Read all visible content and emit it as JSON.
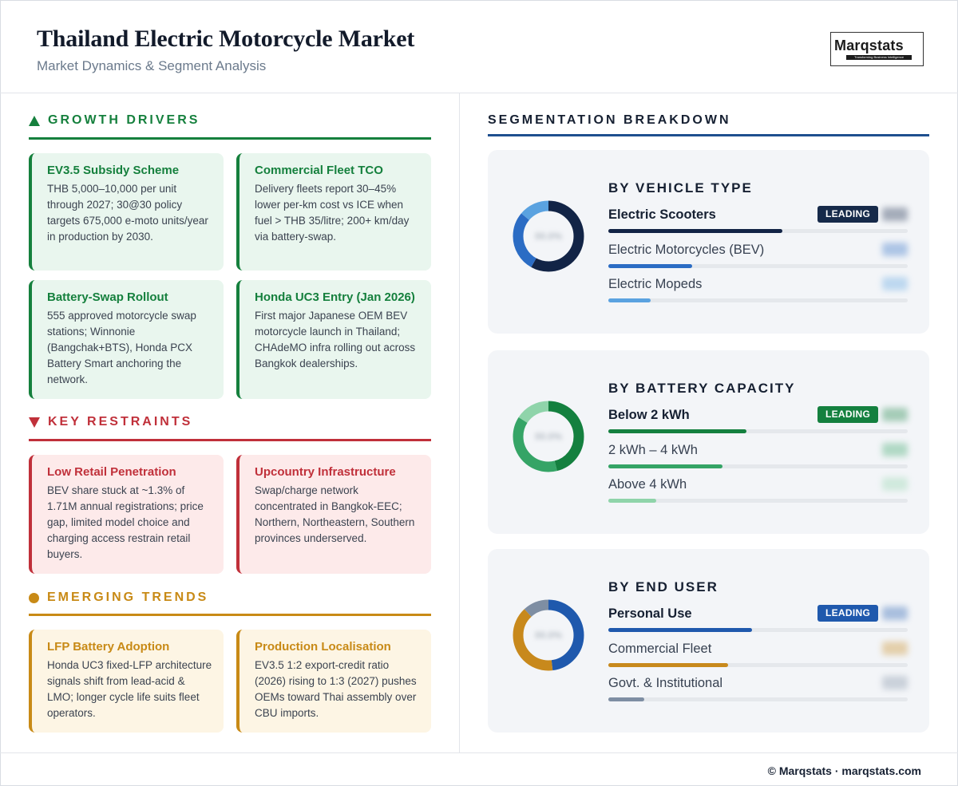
{
  "header": {
    "title": "Thailand Electric Motorcycle Market",
    "subtitle": "Market Dynamics & Segment Analysis",
    "logo_word": "Marqstats",
    "logo_tagline": "Transforming Business Intelligence"
  },
  "drivers": {
    "heading": "GROWTH DRIVERS",
    "icon": "triangle-up-icon",
    "color": "#15803d",
    "cards": [
      {
        "title": "EV3.5 Subsidy Scheme",
        "text": "THB 5,000–10,000 per unit through 2027; 30@30 policy targets 675,000 e-moto units/year in production by 2030."
      },
      {
        "title": "Commercial Fleet TCO",
        "text": "Delivery fleets report 30–45% lower per-km cost vs ICE when fuel > THB 35/litre; 200+ km/day via battery-swap."
      },
      {
        "title": "Battery-Swap Rollout",
        "text": "555 approved motorcycle swap stations; Winnonie (Bangchak+BTS), Honda PCX Battery Smart anchoring the network."
      },
      {
        "title": "Honda UC3 Entry (Jan 2026)",
        "text": "First major Japanese OEM BEV motorcycle launch in Thailand; CHAdeMO infra rolling out across Bangkok dealerships."
      }
    ]
  },
  "restraints": {
    "heading": "KEY RESTRAINTS",
    "icon": "triangle-down-icon",
    "color": "#c0303a",
    "cards": [
      {
        "title": "Low Retail Penetration",
        "text": "BEV share stuck at ~1.3% of 1.71M annual registrations; price gap, limited model choice and charging access restrain retail buyers."
      },
      {
        "title": "Upcountry Infrastructure",
        "text": "Swap/charge network concentrated in Bangkok-EEC; Northern, Northeastern, Southern provinces underserved."
      }
    ]
  },
  "trends": {
    "heading": "EMERGING TRENDS",
    "icon": "circle-icon",
    "color": "#c88a16",
    "cards": [
      {
        "title": "LFP Battery Adoption",
        "text": "Honda UC3 fixed-LFP architecture signals shift from lead-acid & LMO; longer cycle life suits fleet operators."
      },
      {
        "title": "Production Localisation",
        "text": "EV3.5 1:2 export-credit ratio (2026) rising to 1:3 (2027) pushes OEMs toward Thai assembly over CBU imports."
      }
    ]
  },
  "segmentation": {
    "heading": "SEGMENTATION BREAKDOWN",
    "color": "#1e4f8f",
    "leading_label": "LEADING",
    "groups": [
      {
        "title": "BY VEHICLE TYPE",
        "badge_color": "#162a4a",
        "rows": [
          {
            "label": "Electric Scooters",
            "share": 0.58,
            "color": "#122446",
            "leading": true
          },
          {
            "label": "Electric Motorcycles (BEV)",
            "share": 0.28,
            "color": "#2b6cc4",
            "leading": false
          },
          {
            "label": "Electric Mopeds",
            "share": 0.14,
            "color": "#5aa2e0",
            "leading": false
          }
        ]
      },
      {
        "title": "BY BATTERY CAPACITY",
        "badge_color": "#14803f",
        "rows": [
          {
            "label": "Below 2 kWh",
            "share": 0.46,
            "color": "#14803f",
            "leading": true
          },
          {
            "label": "2 kWh – 4 kWh",
            "share": 0.38,
            "color": "#35a466",
            "leading": false
          },
          {
            "label": "Above 4 kWh",
            "share": 0.16,
            "color": "#8fd4aa",
            "leading": false
          }
        ]
      },
      {
        "title": "BY END USER",
        "badge_color": "#1f59ad",
        "rows": [
          {
            "label": "Personal Use",
            "share": 0.48,
            "color": "#1f59ad",
            "leading": true
          },
          {
            "label": "Commercial Fleet",
            "share": 0.4,
            "color": "#c8891c",
            "leading": false
          },
          {
            "label": "Govt. & Institutional",
            "share": 0.12,
            "color": "#7e8ea3",
            "leading": false
          }
        ]
      }
    ]
  },
  "footer": {
    "text": "© Marqstats · marqstats.com"
  }
}
